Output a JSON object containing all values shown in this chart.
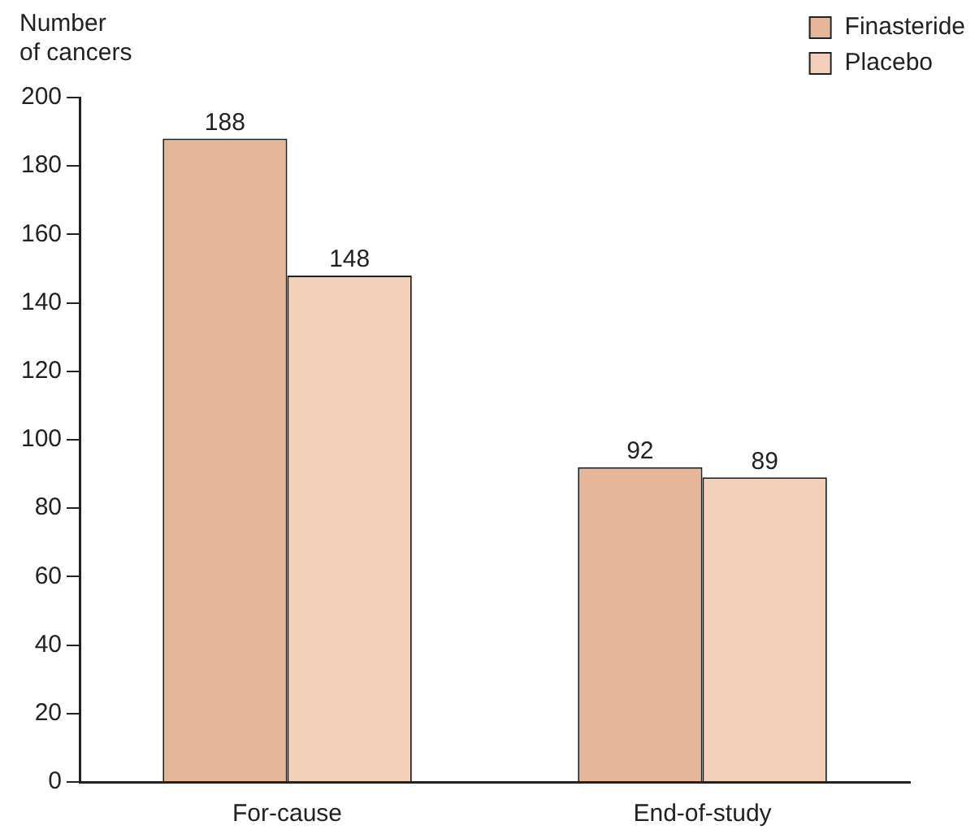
{
  "chart_data": {
    "type": "bar",
    "ylabel": "Number\nof cancers",
    "categories": [
      "For-cause",
      "End-of-study"
    ],
    "series": [
      {
        "name": "Finasteride",
        "color": "#e6b698",
        "values": [
          188,
          92
        ]
      },
      {
        "name": "Placebo",
        "color": "#f1cfb8",
        "values": [
          148,
          89
        ]
      }
    ],
    "ylim": [
      0,
      200
    ],
    "yticks": [
      0,
      20,
      40,
      60,
      80,
      100,
      120,
      140,
      160,
      180,
      200
    ],
    "grid": false,
    "legend": "top right",
    "data_labels": true
  }
}
